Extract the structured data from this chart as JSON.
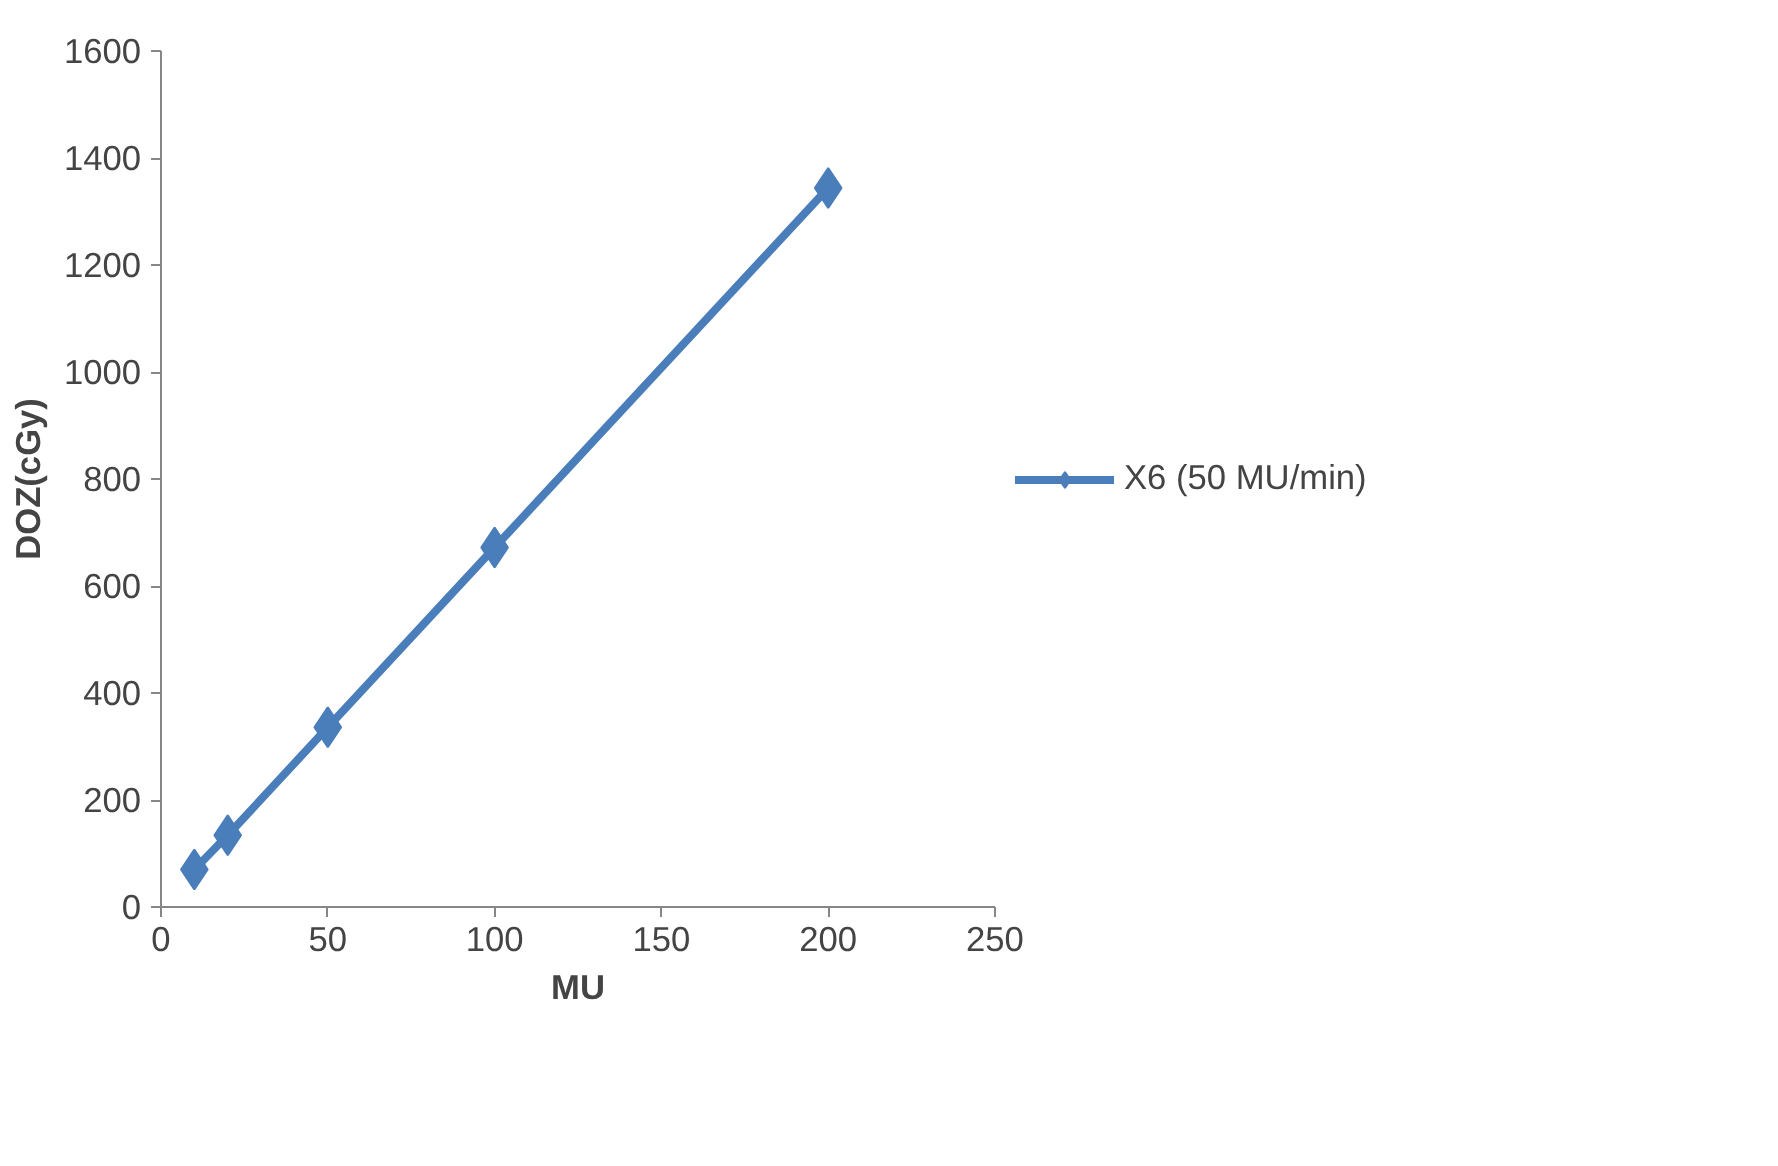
{
  "chart_data": {
    "type": "line",
    "xlabel": "MU",
    "ylabel": "DOZ(cGy)",
    "x": [
      10,
      20,
      50,
      100,
      200
    ],
    "series": [
      {
        "name": "X6 (50 MU/min)",
        "color": "#4a7ebb",
        "values": [
          70,
          134,
          336,
          672,
          1344
        ]
      }
    ],
    "xlim": [
      0,
      250
    ],
    "xticks": [
      0,
      50,
      100,
      150,
      200,
      250
    ],
    "ylim": [
      0,
      1600
    ],
    "yticks": [
      0,
      200,
      400,
      600,
      800,
      1000,
      1200,
      1400,
      1600
    ],
    "grid": false,
    "legend": "right",
    "marker": "diamond",
    "line_style": "solid"
  }
}
